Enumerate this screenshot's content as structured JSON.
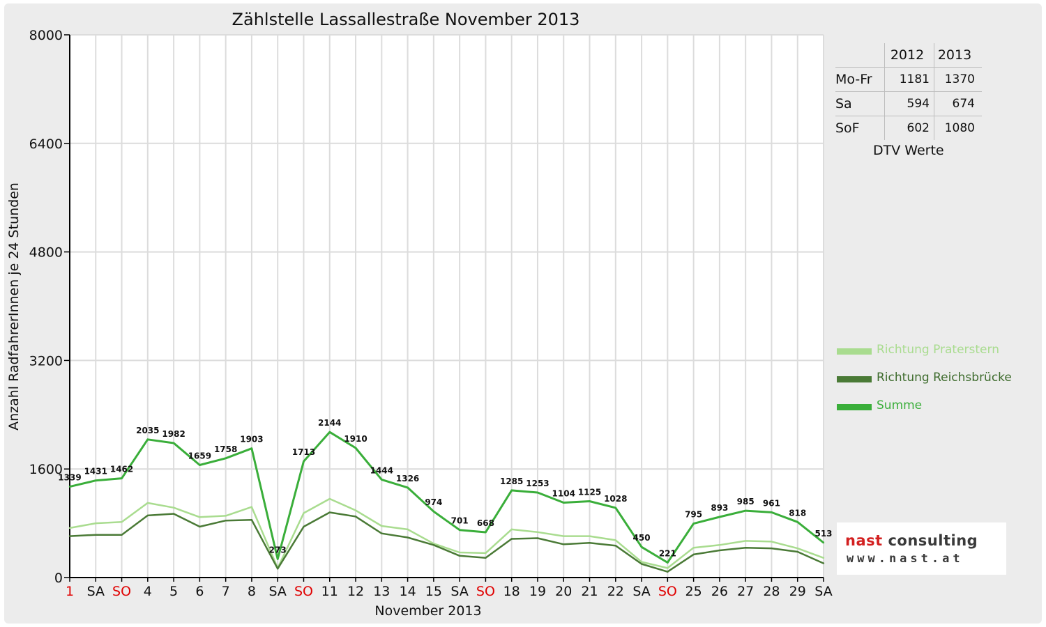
{
  "colors": {
    "praterstern": "#a9dc8f",
    "reichsbruecke": "#4a7a36",
    "summe": "#3aae3a",
    "weekend": "#e00000"
  },
  "chart_data": {
    "type": "line",
    "title": "Zählstelle Lassallestraße November 2013",
    "xlabel": "November 2013",
    "ylabel": "Anzahl RadfahrerInnen je 24 Stunden",
    "ylim": [
      0,
      8000
    ],
    "yticks": [
      "0",
      "1600",
      "3200",
      "4800",
      "6400",
      "8000"
    ],
    "grid": true,
    "legend_position": "right",
    "categories": [
      "1",
      "SA",
      "SO",
      "4",
      "5",
      "6",
      "7",
      "8",
      "SA",
      "SO",
      "11",
      "12",
      "13",
      "14",
      "15",
      "SA",
      "SO",
      "18",
      "19",
      "20",
      "21",
      "22",
      "SA",
      "SO",
      "25",
      "26",
      "27",
      "28",
      "29",
      "SA"
    ],
    "red_categories": [
      0,
      2,
      9,
      16,
      23
    ],
    "series": [
      {
        "name": "Richtung Praterstern",
        "color_key": "praterstern",
        "values": [
          730,
          800,
          820,
          1100,
          1030,
          890,
          910,
          1040,
          140,
          950,
          1160,
          990,
          760,
          710,
          500,
          370,
          360,
          710,
          670,
          610,
          610,
          550,
          230,
          140,
          440,
          480,
          540,
          530,
          430,
          290
        ]
      },
      {
        "name": "Richtung Reichsbrücke",
        "color_key": "reichsbruecke",
        "values": [
          610,
          630,
          630,
          915,
          940,
          750,
          840,
          850,
          130,
          750,
          960,
          900,
          650,
          590,
          480,
          320,
          290,
          570,
          580,
          490,
          510,
          470,
          200,
          85,
          340,
          400,
          440,
          430,
          380,
          210
        ]
      },
      {
        "name": "Summe",
        "color_key": "summe",
        "values": [
          1339,
          1431,
          1462,
          2035,
          1982,
          1659,
          1758,
          1903,
          273,
          1713,
          2144,
          1910,
          1444,
          1326,
          974,
          701,
          668,
          1285,
          1253,
          1104,
          1125,
          1028,
          450,
          221,
          795,
          893,
          985,
          961,
          818,
          513
        ]
      }
    ],
    "data_labels": [
      "1339",
      "1431",
      "1462",
      "2035",
      "1982",
      "1659",
      "1758",
      "1903",
      "273",
      "1713",
      "2144",
      "1910",
      "1444",
      "1326",
      "974",
      "701",
      "668",
      "1285",
      "1253",
      "1104",
      "1125",
      "1028",
      "450",
      "221",
      "795",
      "893",
      "985",
      "961",
      "818",
      "513"
    ]
  },
  "dtv": {
    "headers": [
      "2012",
      "2013"
    ],
    "rows": [
      {
        "label": "Mo-Fr",
        "v2012": "1181",
        "v2013": "1370"
      },
      {
        "label": "Sa",
        "v2012": "594",
        "v2013": "674"
      },
      {
        "label": "SoF",
        "v2012": "602",
        "v2013": "1080"
      }
    ],
    "caption": "DTV Werte"
  },
  "logo": {
    "name_part1": "nast",
    "name_part2": " consulting",
    "url": "www.nast.at"
  }
}
